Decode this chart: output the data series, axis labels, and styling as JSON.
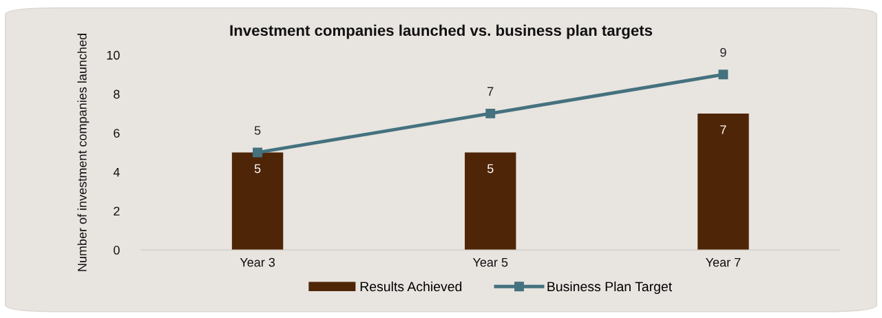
{
  "chart_data": {
    "type": "bar",
    "title": "Investment companies launched vs. business plan targets",
    "ylabel": "Number of investment companies launched",
    "categories": [
      "Year 3",
      "Year 5",
      "Year 7"
    ],
    "series": [
      {
        "name": "Results Achieved",
        "color": "#4f2508",
        "values": [
          5,
          5,
          7
        ]
      },
      {
        "name": "Business Plan Target",
        "type": "line",
        "color": "#44727e",
        "values": [
          5,
          7,
          9
        ],
        "marker": "square",
        "line_style": "solid"
      }
    ],
    "ylim": [
      0,
      10
    ],
    "yticks": [
      0,
      2,
      4,
      6,
      8,
      10
    ],
    "grid": false,
    "legend": "bottom",
    "data_labels": true
  }
}
